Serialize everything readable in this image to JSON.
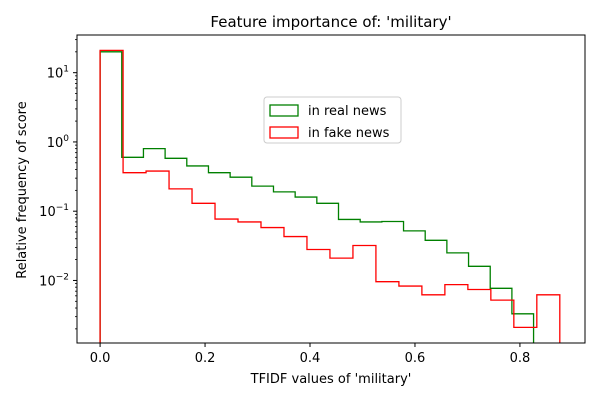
{
  "chart_data": {
    "type": "histogram",
    "title": "Feature importance of: 'military'",
    "xlabel": "TFIDF values of 'military'",
    "ylabel": "Relative frequency of score",
    "yscale": "log",
    "xlim": [
      -0.044,
      0.924
    ],
    "ylim": [
      0.00125,
      35
    ],
    "grid": false,
    "legend_position": "center-top",
    "x_ticks": [
      {
        "value": 0.0,
        "label": "0.0"
      },
      {
        "value": 0.2,
        "label": "0.2"
      },
      {
        "value": 0.4,
        "label": "0.4"
      },
      {
        "value": 0.6,
        "label": "0.6"
      },
      {
        "value": 0.8,
        "label": "0.8"
      }
    ],
    "y_ticks": [
      {
        "value": 10,
        "label": "10",
        "exp": "1"
      },
      {
        "value": 1,
        "label": "10",
        "exp": "0"
      },
      {
        "value": 0.1,
        "label": "10",
        "exp": "−1"
      },
      {
        "value": 0.01,
        "label": "10",
        "exp": "−2"
      }
    ],
    "series": [
      {
        "name": "in real news",
        "color": "#008000",
        "bin_edges": [
          0.0,
          0.0413,
          0.0826,
          0.1239,
          0.1652,
          0.2065,
          0.2478,
          0.2891,
          0.3304,
          0.3717,
          0.413,
          0.4543,
          0.4956,
          0.5369,
          0.5782,
          0.6195,
          0.6608,
          0.7021,
          0.7434,
          0.7847,
          0.826
        ],
        "values": [
          20,
          0.6,
          0.8,
          0.58,
          0.45,
          0.36,
          0.31,
          0.23,
          0.19,
          0.16,
          0.13,
          0.076,
          0.07,
          0.071,
          0.052,
          0.038,
          0.025,
          0.016,
          0.0077,
          0.0033
        ]
      },
      {
        "name": "in fake news",
        "color": "#ff0000",
        "bin_edges": [
          0.0,
          0.0438,
          0.0876,
          0.1314,
          0.1752,
          0.219,
          0.2628,
          0.3066,
          0.3504,
          0.3942,
          0.438,
          0.4818,
          0.5256,
          0.5694,
          0.6132,
          0.657,
          0.7008,
          0.7446,
          0.7884,
          0.8322,
          0.876
        ],
        "values": [
          21,
          0.36,
          0.38,
          0.21,
          0.13,
          0.077,
          0.07,
          0.058,
          0.043,
          0.028,
          0.021,
          0.032,
          0.0096,
          0.0083,
          0.0062,
          0.0087,
          0.0074,
          0.0052,
          0.0021,
          0.0062
        ]
      }
    ]
  }
}
